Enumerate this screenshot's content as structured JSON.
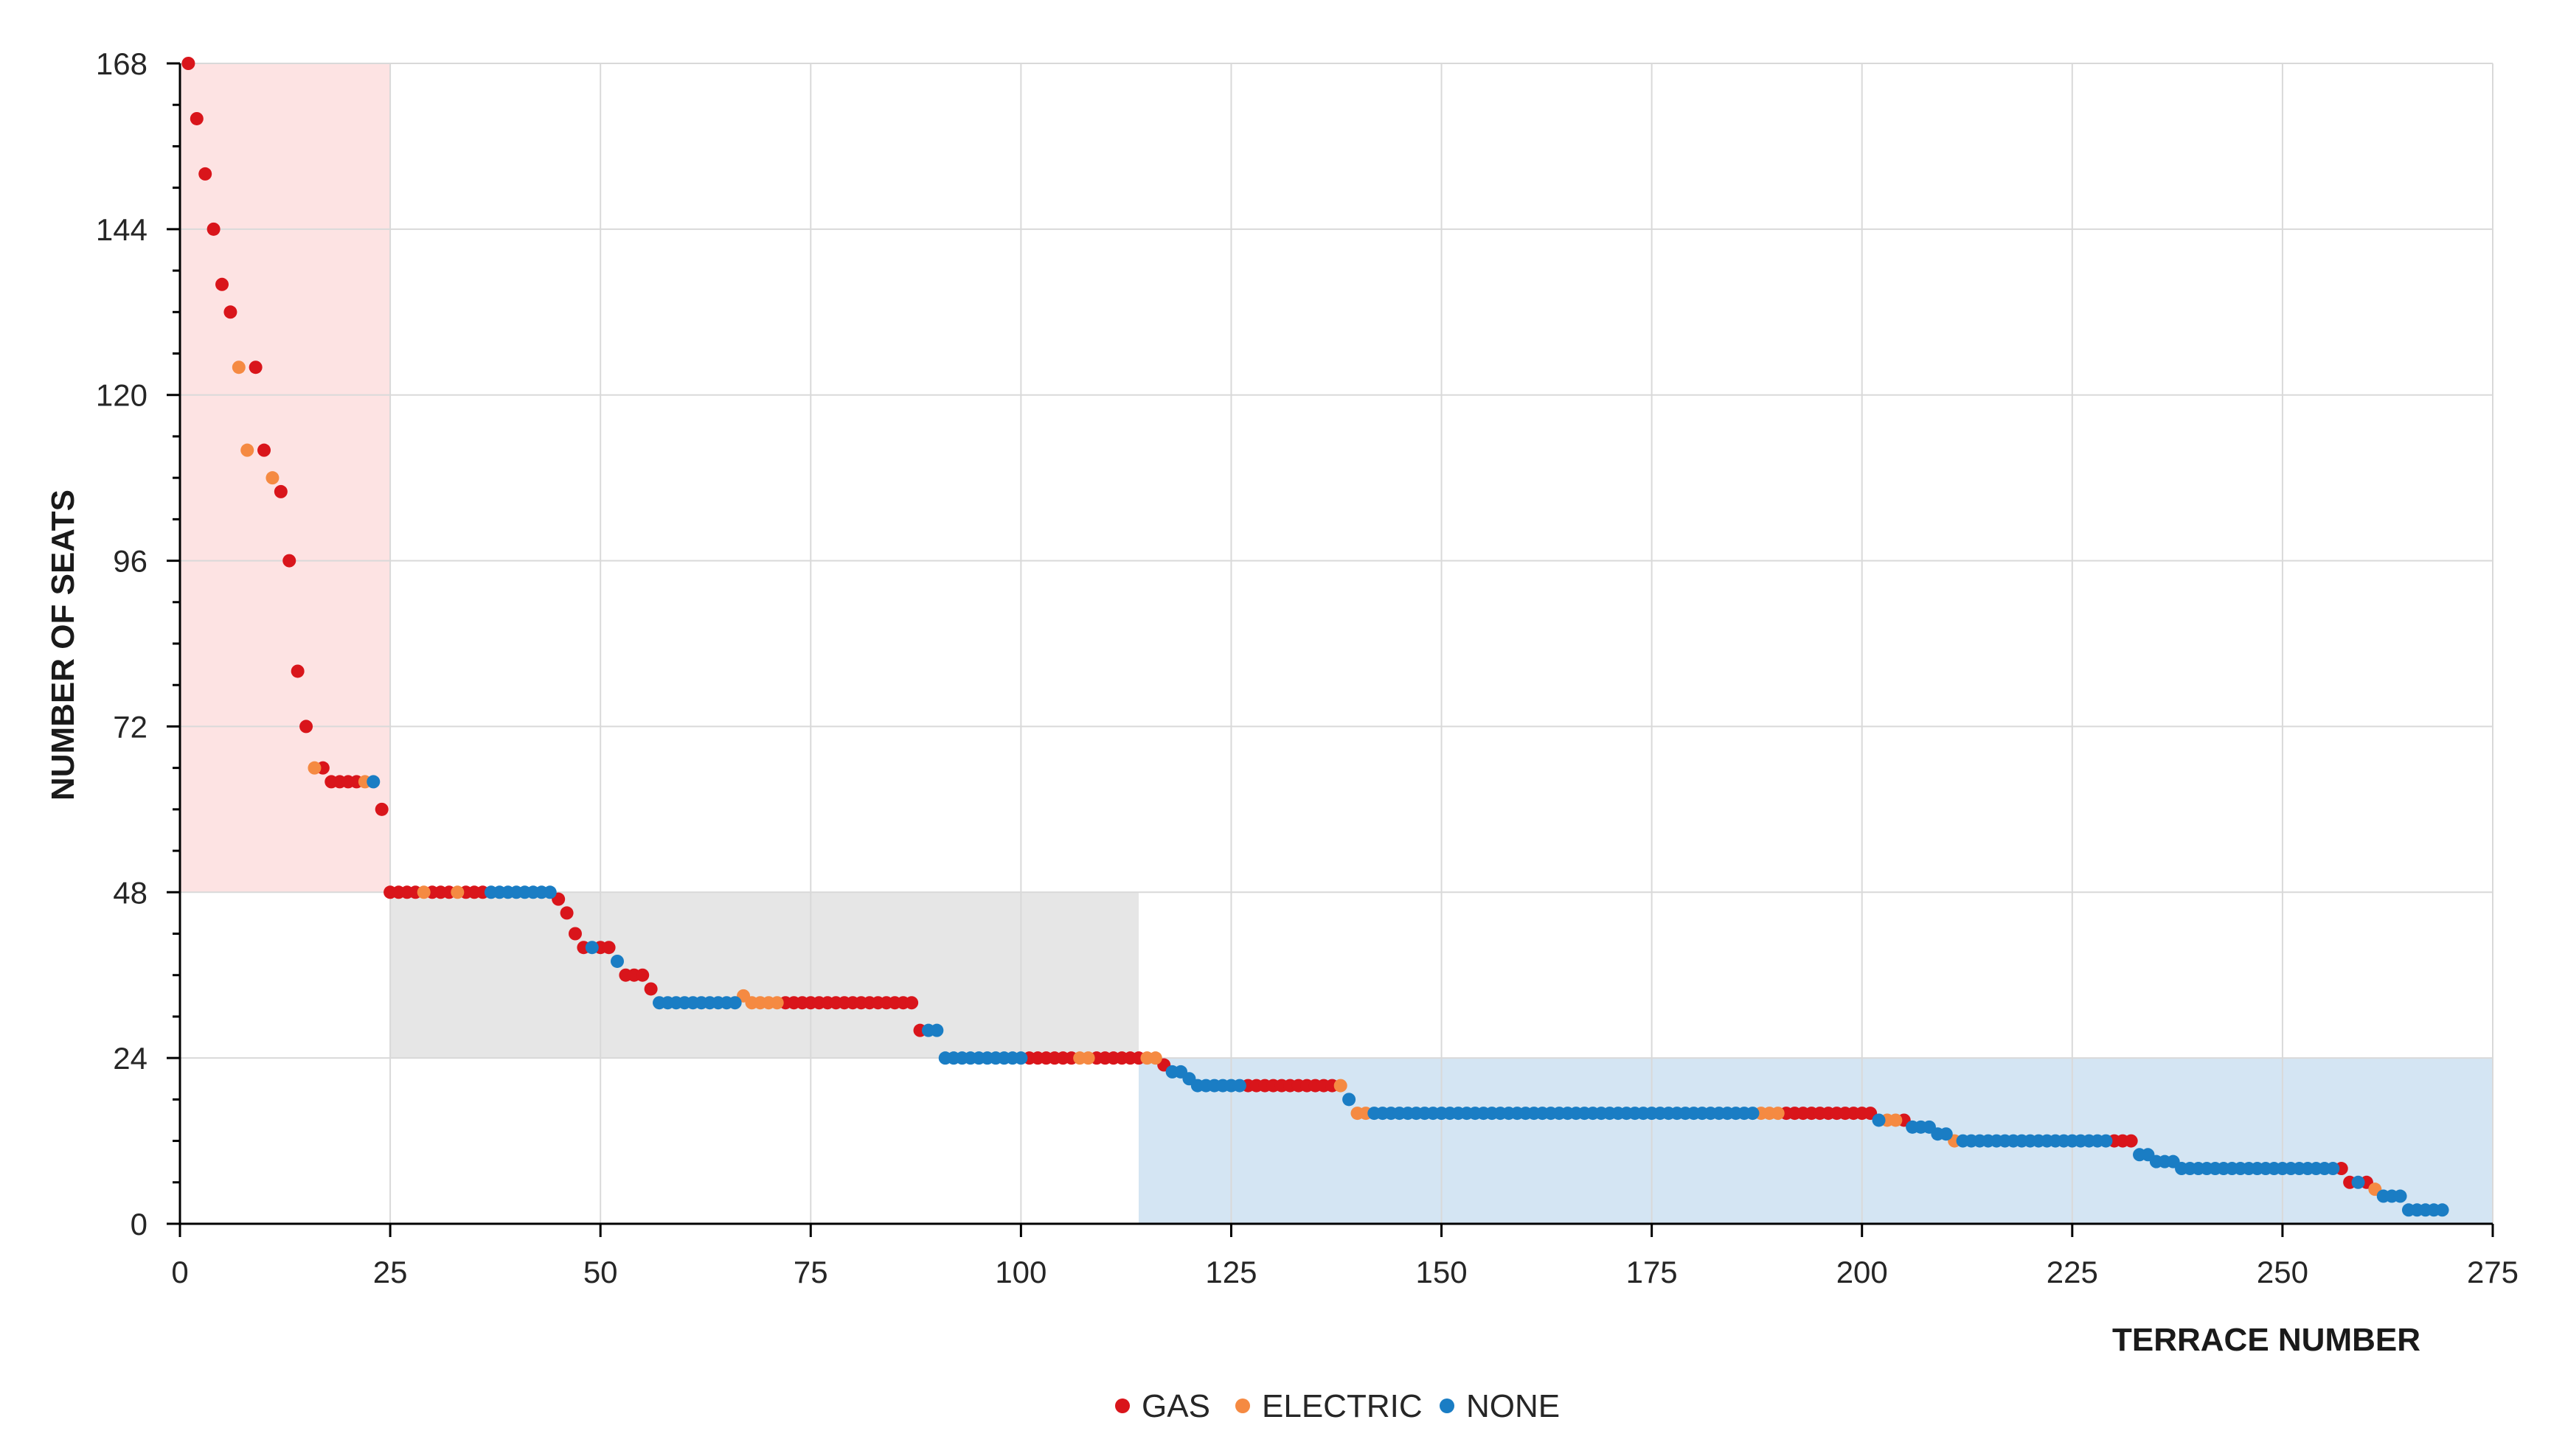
{
  "chart_data": {
    "type": "scatter",
    "title": "",
    "xlabel": "TERRACE NUMBER",
    "ylabel": "NUMBER OF SEATS",
    "xlim": [
      0,
      275
    ],
    "ylim": [
      0,
      168
    ],
    "xticks": [
      "0",
      "25",
      "50",
      "75",
      "100",
      "125",
      "150",
      "175",
      "200",
      "225",
      "250",
      "275"
    ],
    "yticks": [
      "0",
      "24",
      "48",
      "72",
      "96",
      "120",
      "144",
      "168"
    ],
    "grid": true,
    "legend_position": "bottom-center",
    "colors": {
      "GAS": "#d9151b",
      "ELECTRIC": "#f58a42",
      "NONE": "#1a7dc4"
    },
    "regions": [
      {
        "x": [
          0,
          25
        ],
        "y": [
          48,
          168
        ],
        "color": "#fde3e3"
      },
      {
        "x": [
          25,
          114
        ],
        "y": [
          24,
          48
        ],
        "color": "#e6e6e6"
      },
      {
        "x": [
          114,
          275
        ],
        "y": [
          0,
          24
        ],
        "color": "#d4e5f3"
      }
    ],
    "series": [
      {
        "name": "GAS",
        "points": [
          [
            1,
            168
          ],
          [
            2,
            160
          ],
          [
            3,
            152
          ],
          [
            4,
            144
          ],
          [
            5,
            136
          ],
          [
            6,
            132
          ],
          [
            9,
            124
          ],
          [
            10,
            112
          ],
          [
            12,
            106
          ],
          [
            13,
            96
          ],
          [
            14,
            80
          ],
          [
            15,
            72
          ],
          [
            17,
            66
          ],
          [
            18,
            64
          ],
          [
            19,
            64
          ],
          [
            20,
            64
          ],
          [
            21,
            64
          ],
          [
            24,
            60
          ],
          [
            25,
            48
          ],
          [
            26,
            48
          ],
          [
            27,
            48
          ],
          [
            28,
            48
          ],
          [
            30,
            48
          ],
          [
            31,
            48
          ],
          [
            32,
            48
          ],
          [
            34,
            48
          ],
          [
            35,
            48
          ],
          [
            36,
            48
          ],
          [
            45,
            47
          ],
          [
            46,
            45
          ],
          [
            47,
            42
          ],
          [
            48,
            40
          ],
          [
            50,
            40
          ],
          [
            51,
            40
          ],
          [
            53,
            36
          ],
          [
            54,
            36
          ],
          [
            55,
            36
          ],
          [
            56,
            34
          ],
          [
            72,
            32
          ],
          [
            73,
            32
          ],
          [
            74,
            32
          ],
          [
            75,
            32
          ],
          [
            76,
            32
          ],
          [
            77,
            32
          ],
          [
            78,
            32
          ],
          [
            79,
            32
          ],
          [
            80,
            32
          ],
          [
            81,
            32
          ],
          [
            82,
            32
          ],
          [
            83,
            32
          ],
          [
            84,
            32
          ],
          [
            85,
            32
          ],
          [
            86,
            32
          ],
          [
            87,
            32
          ],
          [
            88,
            28
          ],
          [
            101,
            24
          ],
          [
            102,
            24
          ],
          [
            103,
            24
          ],
          [
            104,
            24
          ],
          [
            105,
            24
          ],
          [
            106,
            24
          ],
          [
            109,
            24
          ],
          [
            110,
            24
          ],
          [
            111,
            24
          ],
          [
            112,
            24
          ],
          [
            113,
            24
          ],
          [
            114,
            24
          ],
          [
            117,
            23
          ],
          [
            127,
            20
          ],
          [
            128,
            20
          ],
          [
            129,
            20
          ],
          [
            130,
            20
          ],
          [
            131,
            20
          ],
          [
            132,
            20
          ],
          [
            133,
            20
          ],
          [
            134,
            20
          ],
          [
            135,
            20
          ],
          [
            136,
            20
          ],
          [
            137,
            20
          ],
          [
            191,
            16
          ],
          [
            192,
            16
          ],
          [
            193,
            16
          ],
          [
            194,
            16
          ],
          [
            195,
            16
          ],
          [
            196,
            16
          ],
          [
            197,
            16
          ],
          [
            198,
            16
          ],
          [
            199,
            16
          ],
          [
            200,
            16
          ],
          [
            201,
            16
          ],
          [
            205,
            15
          ],
          [
            230,
            12
          ],
          [
            231,
            12
          ],
          [
            232,
            12
          ],
          [
            257,
            8
          ],
          [
            258,
            6
          ],
          [
            260,
            6
          ]
        ]
      },
      {
        "name": "ELECTRIC",
        "points": [
          [
            7,
            124
          ],
          [
            8,
            112
          ],
          [
            11,
            108
          ],
          [
            16,
            66
          ],
          [
            22,
            64
          ],
          [
            29,
            48
          ],
          [
            33,
            48
          ],
          [
            67,
            33
          ],
          [
            68,
            32
          ],
          [
            69,
            32
          ],
          [
            70,
            32
          ],
          [
            71,
            32
          ],
          [
            107,
            24
          ],
          [
            108,
            24
          ],
          [
            115,
            24
          ],
          [
            116,
            24
          ],
          [
            138,
            20
          ],
          [
            140,
            16
          ],
          [
            141,
            16
          ],
          [
            188,
            16
          ],
          [
            189,
            16
          ],
          [
            190,
            16
          ],
          [
            203,
            15
          ],
          [
            204,
            15
          ],
          [
            211,
            12
          ],
          [
            261,
            5
          ]
        ]
      },
      {
        "name": "NONE",
        "points": [
          [
            23,
            64
          ],
          [
            37,
            48
          ],
          [
            38,
            48
          ],
          [
            39,
            48
          ],
          [
            40,
            48
          ],
          [
            41,
            48
          ],
          [
            42,
            48
          ],
          [
            43,
            48
          ],
          [
            44,
            48
          ],
          [
            49,
            40
          ],
          [
            52,
            38
          ],
          [
            57,
            32
          ],
          [
            58,
            32
          ],
          [
            59,
            32
          ],
          [
            60,
            32
          ],
          [
            61,
            32
          ],
          [
            62,
            32
          ],
          [
            63,
            32
          ],
          [
            64,
            32
          ],
          [
            65,
            32
          ],
          [
            66,
            32
          ],
          [
            89,
            28
          ],
          [
            90,
            28
          ],
          [
            91,
            24
          ],
          [
            92,
            24
          ],
          [
            93,
            24
          ],
          [
            94,
            24
          ],
          [
            95,
            24
          ],
          [
            96,
            24
          ],
          [
            97,
            24
          ],
          [
            98,
            24
          ],
          [
            99,
            24
          ],
          [
            100,
            24
          ],
          [
            118,
            22
          ],
          [
            119,
            22
          ],
          [
            120,
            21
          ],
          [
            121,
            20
          ],
          [
            122,
            20
          ],
          [
            123,
            20
          ],
          [
            124,
            20
          ],
          [
            125,
            20
          ],
          [
            126,
            20
          ],
          [
            139,
            18
          ],
          [
            142,
            16
          ],
          [
            143,
            16
          ],
          [
            144,
            16
          ],
          [
            145,
            16
          ],
          [
            146,
            16
          ],
          [
            147,
            16
          ],
          [
            148,
            16
          ],
          [
            149,
            16
          ],
          [
            150,
            16
          ],
          [
            151,
            16
          ],
          [
            152,
            16
          ],
          [
            153,
            16
          ],
          [
            154,
            16
          ],
          [
            155,
            16
          ],
          [
            156,
            16
          ],
          [
            157,
            16
          ],
          [
            158,
            16
          ],
          [
            159,
            16
          ],
          [
            160,
            16
          ],
          [
            161,
            16
          ],
          [
            162,
            16
          ],
          [
            163,
            16
          ],
          [
            164,
            16
          ],
          [
            165,
            16
          ],
          [
            166,
            16
          ],
          [
            167,
            16
          ],
          [
            168,
            16
          ],
          [
            169,
            16
          ],
          [
            170,
            16
          ],
          [
            171,
            16
          ],
          [
            172,
            16
          ],
          [
            173,
            16
          ],
          [
            174,
            16
          ],
          [
            175,
            16
          ],
          [
            176,
            16
          ],
          [
            177,
            16
          ],
          [
            178,
            16
          ],
          [
            179,
            16
          ],
          [
            180,
            16
          ],
          [
            181,
            16
          ],
          [
            182,
            16
          ],
          [
            183,
            16
          ],
          [
            184,
            16
          ],
          [
            185,
            16
          ],
          [
            186,
            16
          ],
          [
            187,
            16
          ],
          [
            202,
            15
          ],
          [
            206,
            14
          ],
          [
            207,
            14
          ],
          [
            208,
            14
          ],
          [
            209,
            13
          ],
          [
            210,
            13
          ],
          [
            212,
            12
          ],
          [
            213,
            12
          ],
          [
            214,
            12
          ],
          [
            215,
            12
          ],
          [
            216,
            12
          ],
          [
            217,
            12
          ],
          [
            218,
            12
          ],
          [
            219,
            12
          ],
          [
            220,
            12
          ],
          [
            221,
            12
          ],
          [
            222,
            12
          ],
          [
            223,
            12
          ],
          [
            224,
            12
          ],
          [
            225,
            12
          ],
          [
            226,
            12
          ],
          [
            227,
            12
          ],
          [
            228,
            12
          ],
          [
            229,
            12
          ],
          [
            233,
            10
          ],
          [
            234,
            10
          ],
          [
            235,
            9
          ],
          [
            236,
            9
          ],
          [
            237,
            9
          ],
          [
            238,
            8
          ],
          [
            239,
            8
          ],
          [
            240,
            8
          ],
          [
            241,
            8
          ],
          [
            242,
            8
          ],
          [
            243,
            8
          ],
          [
            244,
            8
          ],
          [
            245,
            8
          ],
          [
            246,
            8
          ],
          [
            247,
            8
          ],
          [
            248,
            8
          ],
          [
            249,
            8
          ],
          [
            250,
            8
          ],
          [
            251,
            8
          ],
          [
            252,
            8
          ],
          [
            253,
            8
          ],
          [
            254,
            8
          ],
          [
            255,
            8
          ],
          [
            256,
            8
          ],
          [
            259,
            6
          ],
          [
            262,
            4
          ],
          [
            263,
            4
          ],
          [
            264,
            4
          ],
          [
            265,
            2
          ],
          [
            266,
            2
          ],
          [
            267,
            2
          ],
          [
            268,
            2
          ],
          [
            269,
            2
          ]
        ]
      }
    ]
  }
}
